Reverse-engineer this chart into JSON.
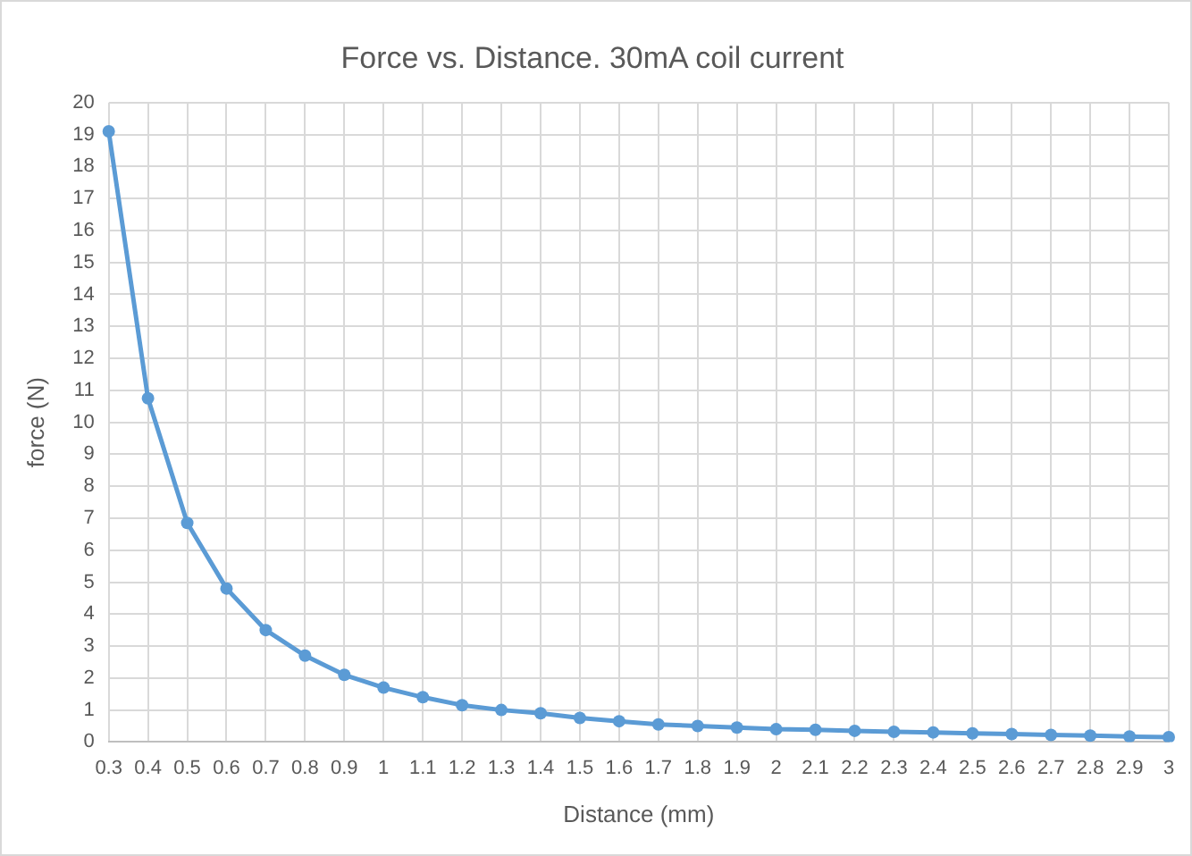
{
  "chart_data": {
    "type": "line",
    "title": "Force vs. Distance. 30mA coil current",
    "xlabel": "Distance (mm)",
    "ylabel": "force (N)",
    "categories": [
      "0.3",
      "0.4",
      "0.5",
      "0.6",
      "0.7",
      "0.8",
      "0.9",
      "1",
      "1.1",
      "1.2",
      "1.3",
      "1.4",
      "1.5",
      "1.6",
      "1.7",
      "1.8",
      "1.9",
      "2",
      "2.1",
      "2.2",
      "2.3",
      "2.4",
      "2.5",
      "2.6",
      "2.7",
      "2.8",
      "2.9",
      "3"
    ],
    "series": [
      {
        "color": "#5b9bd5",
        "values": [
          19.1,
          10.75,
          6.85,
          4.8,
          3.5,
          2.7,
          2.1,
          1.7,
          1.4,
          1.15,
          1.0,
          0.9,
          0.75,
          0.65,
          0.55,
          0.5,
          0.45,
          0.4,
          0.38,
          0.35,
          0.32,
          0.3,
          0.27,
          0.25,
          0.22,
          0.2,
          0.17,
          0.15
        ]
      }
    ],
    "ylim": [
      0,
      20
    ],
    "yticks": [
      0,
      1,
      2,
      3,
      4,
      5,
      6,
      7,
      8,
      9,
      10,
      11,
      12,
      13,
      14,
      15,
      16,
      17,
      18,
      19,
      20
    ],
    "grid": true,
    "marker": "circle",
    "line_style": "solid",
    "legend": false
  }
}
